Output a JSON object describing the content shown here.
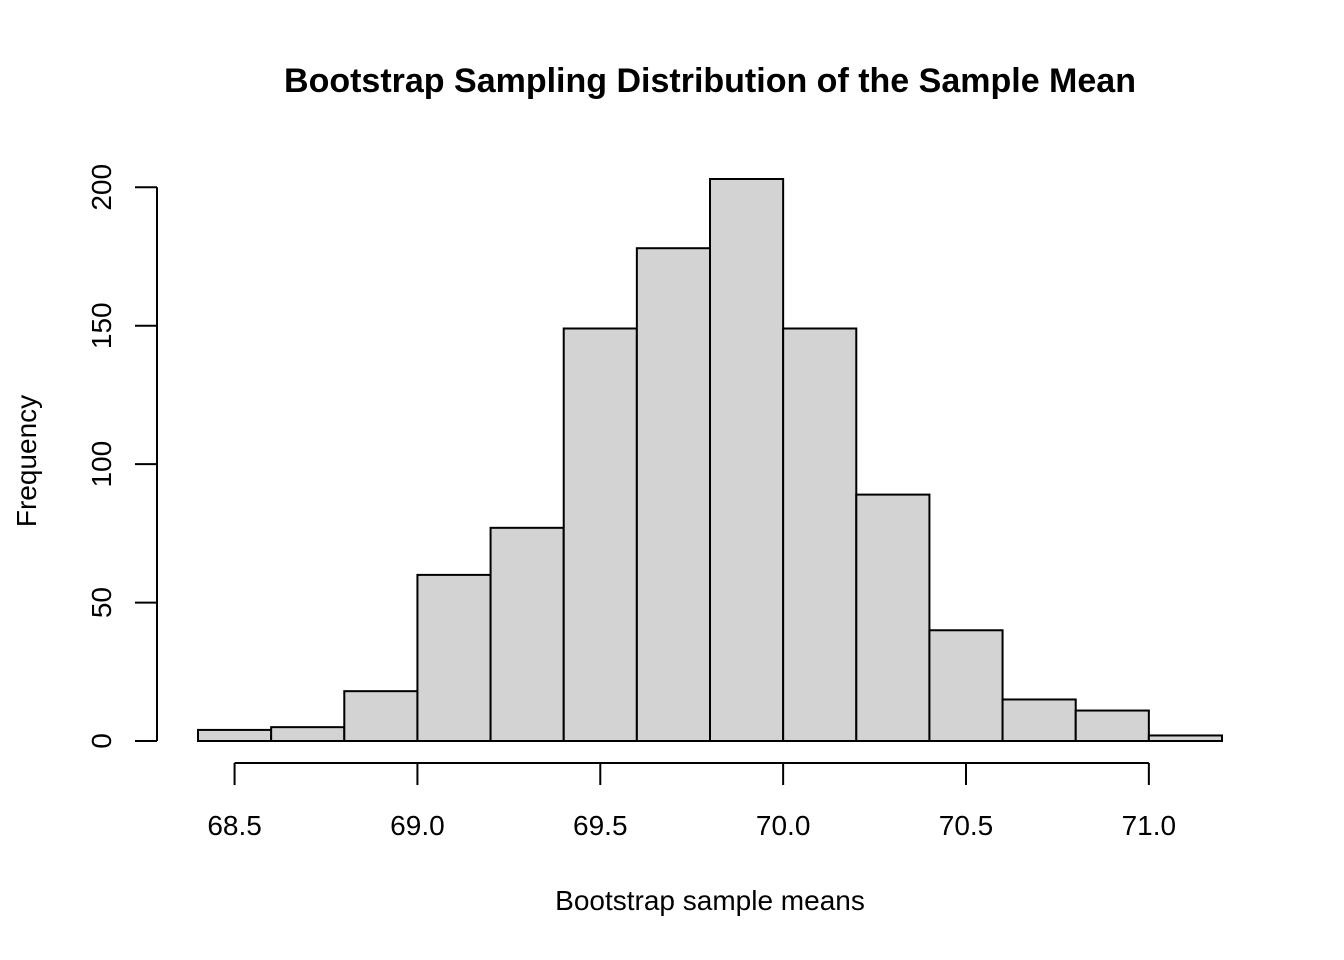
{
  "chart_data": {
    "type": "bar",
    "title": "Bootstrap Sampling Distribution of the Sample Mean",
    "xlabel": "Bootstrap sample means",
    "ylabel": "Frequency",
    "bin_edges": [
      68.4,
      68.6,
      68.8,
      69.0,
      69.2,
      69.4,
      69.6,
      69.8,
      70.0,
      70.2,
      70.4,
      70.6,
      70.8,
      71.0,
      71.2
    ],
    "values": [
      4,
      5,
      18,
      60,
      77,
      149,
      178,
      203,
      149,
      89,
      40,
      15,
      11,
      2
    ],
    "xlim": [
      68.4,
      71.2
    ],
    "ylim": [
      0,
      203
    ],
    "x_ticks": [
      68.5,
      69.0,
      69.5,
      70.0,
      70.5,
      71.0
    ],
    "x_tick_labels": [
      "68.5",
      "69.0",
      "69.5",
      "70.0",
      "70.5",
      "71.0"
    ],
    "y_ticks": [
      0,
      50,
      100,
      150,
      200
    ],
    "y_tick_labels": [
      "0",
      "50",
      "100",
      "150",
      "200"
    ],
    "bar_color": "#d3d3d3",
    "grid": false
  }
}
